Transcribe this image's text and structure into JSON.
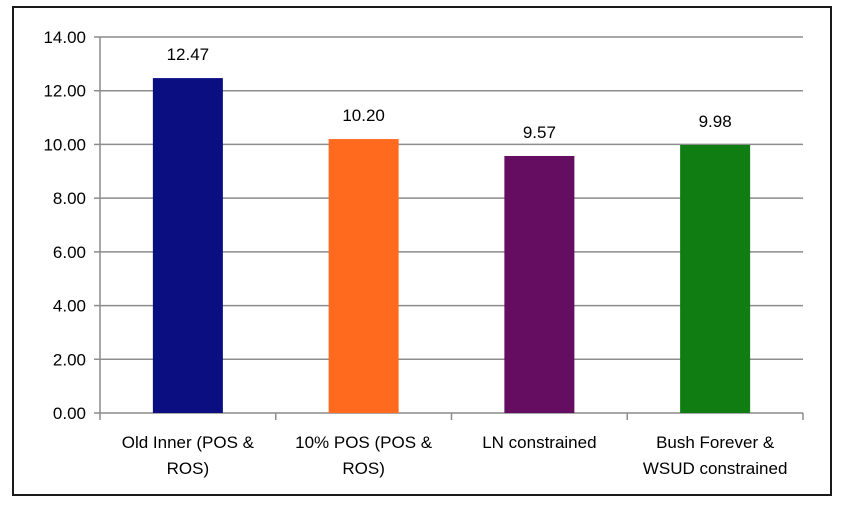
{
  "chart_data": {
    "type": "bar",
    "categories": [
      [
        "Old Inner (POS &",
        "ROS)"
      ],
      [
        "10% POS (POS &",
        "ROS)"
      ],
      [
        "LN constrained"
      ],
      [
        "Bush Forever &",
        "WSUD constrained"
      ]
    ],
    "values": [
      12.47,
      10.2,
      9.57,
      9.98
    ],
    "value_labels": [
      "12.47",
      "10.20",
      "9.57",
      "9.98"
    ],
    "bar_colors": [
      "#0a0e80",
      "#ff6a1f",
      "#650d60",
      "#0f7d12"
    ],
    "ylim": [
      0,
      14
    ],
    "yticks": [
      "0.00",
      "2.00",
      "4.00",
      "6.00",
      "8.00",
      "10.00",
      "12.00",
      "14.00"
    ],
    "grid": true,
    "title": "",
    "xlabel": "",
    "ylabel": ""
  }
}
